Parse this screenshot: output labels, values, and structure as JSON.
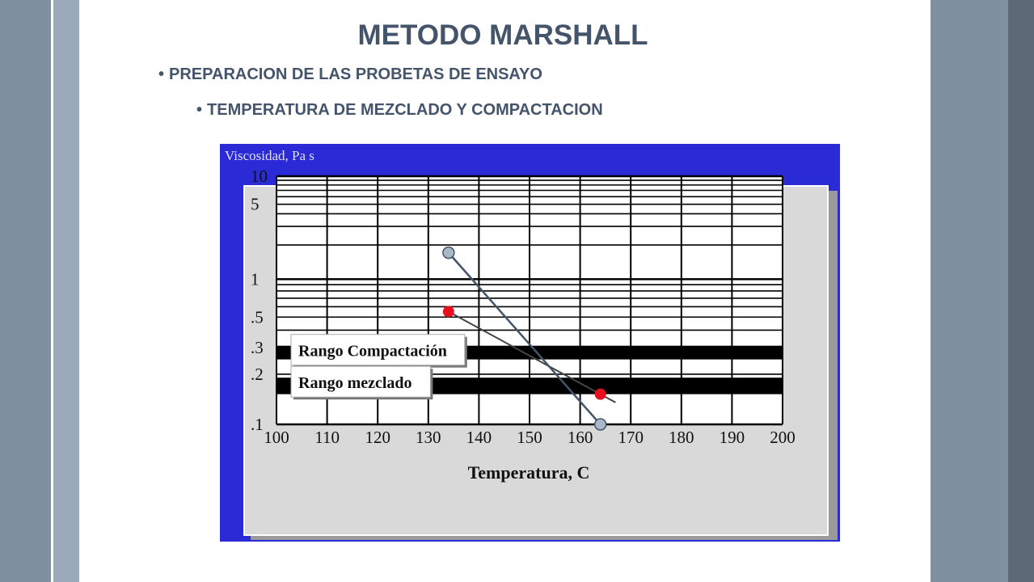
{
  "slide": {
    "title": "METODO MARSHALL",
    "bullet1": "PREPARACION DE LAS PROBETAS DE ENSAYO",
    "bullet2": "TEMPERATURA DE MEZCLADO Y COMPACTACION",
    "bullet_glyph": "•"
  },
  "colors": {
    "title_text": "#44546a",
    "side_band": "#7f90a0",
    "side_band_light": "#9aaab9",
    "side_band_dark": "#5c6a78",
    "chart_background": "#2a2ad6",
    "plot_panel": "#d9d9d9",
    "range_band": "#000000",
    "test_point": "#e8101e",
    "trend_line": "#44546a",
    "handle_fill": "#a9b8c6"
  },
  "chart_data": {
    "type": "line",
    "y_title": "Viscosidad, Pa s",
    "xlabel": "Temperatura, C",
    "x_ticks": [
      100,
      110,
      120,
      130,
      140,
      150,
      160,
      170,
      180,
      190,
      200
    ],
    "x_tick_labels": [
      "100",
      "110",
      "120",
      "130",
      "140",
      "150",
      "160",
      "170",
      "180",
      "190",
      "200"
    ],
    "xlim": [
      100,
      200
    ],
    "y_scale": "log-log",
    "ylim": [
      0.1,
      10
    ],
    "y_tick_values": [
      10,
      5,
      1,
      0.5,
      0.3,
      0.2,
      0.1
    ],
    "y_tick_labels": [
      "10",
      "5",
      "1",
      ".5",
      ".3",
      ".2",
      ".1"
    ],
    "grid": true,
    "ranges": [
      {
        "label": "Rango Compactación",
        "y_min": 0.25,
        "y_max": 0.31
      },
      {
        "label": "Rango mezclado",
        "y_min": 0.15,
        "y_max": 0.19
      }
    ],
    "series": [
      {
        "points": [
          [
            134,
            0.55
          ],
          [
            164,
            0.15
          ]
        ]
      }
    ],
    "overlay_line": [
      [
        134,
        1.7
      ],
      [
        164,
        0.1
      ]
    ]
  }
}
